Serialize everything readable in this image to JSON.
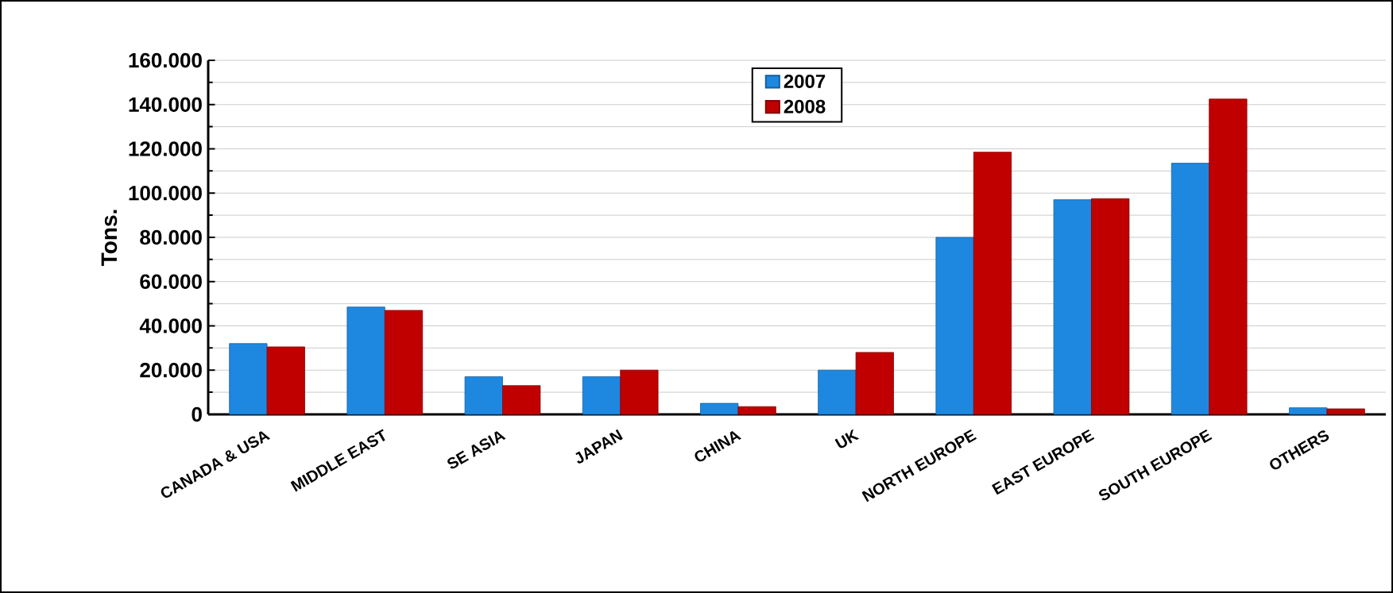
{
  "chart_data": {
    "type": "bar",
    "ylabel": "Tons.",
    "categories": [
      "CANADA & USA",
      "MIDDLE EAST",
      "SE ASIA",
      "JAPAN",
      "CHINA",
      "UK",
      "NORTH EUROPE",
      "EAST EUROPE",
      "SOUTH EUROPE",
      "OTHERS"
    ],
    "series": [
      {
        "name": "2007",
        "color": "#1e88e0",
        "values": [
          32000,
          48500,
          17000,
          17000,
          5000,
          20000,
          80000,
          97000,
          113500,
          3000
        ]
      },
      {
        "name": "2008",
        "color": "#c00000",
        "values": [
          30500,
          47000,
          13000,
          20000,
          3500,
          28000,
          118500,
          97500,
          142500,
          2500
        ]
      }
    ],
    "ylim": [
      0,
      160000
    ],
    "yticks": [
      0,
      {
        "value": 20000,
        "label": "20.000"
      },
      {
        "value": 40000,
        "label": "40.000"
      },
      {
        "value": 60000,
        "label": "60.000"
      },
      {
        "value": 80000,
        "label": "80.000"
      },
      {
        "value": 100000,
        "label": "100.000"
      },
      {
        "value": 120000,
        "label": "120.000"
      },
      {
        "value": 140000,
        "label": "140.000"
      },
      {
        "value": 160000,
        "label": "160.000"
      }
    ],
    "grid": "y",
    "legend": "top"
  }
}
